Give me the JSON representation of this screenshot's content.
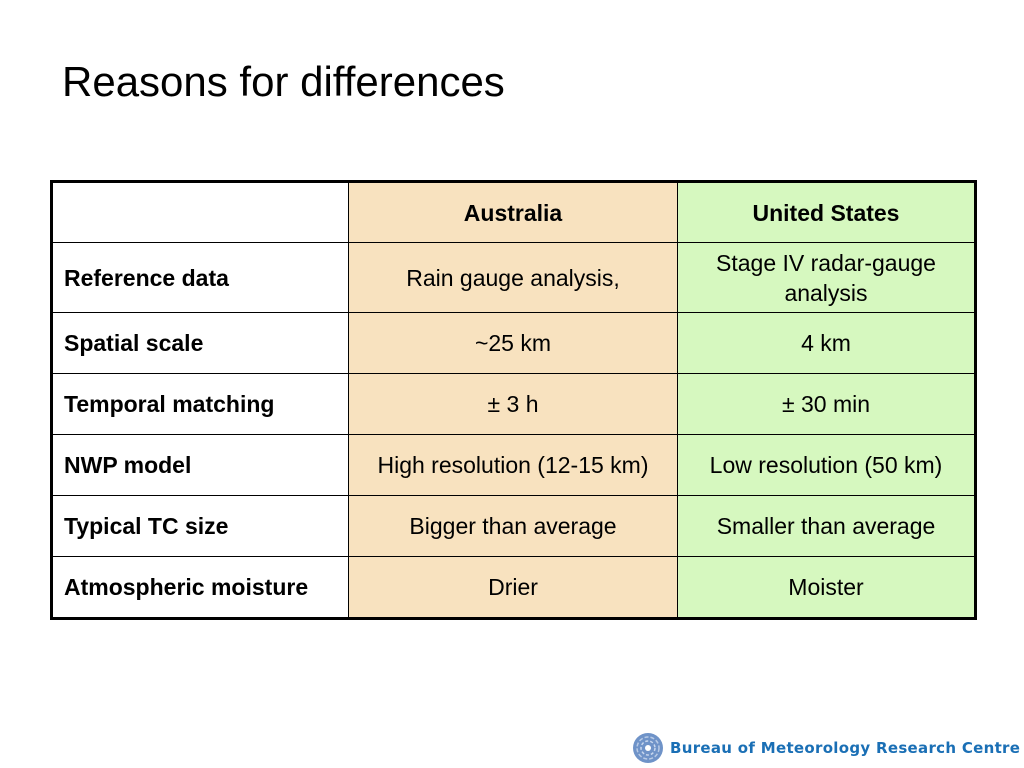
{
  "slide": {
    "title": "Reasons for differences"
  },
  "table": {
    "columns": [
      "",
      "Australia",
      "United States"
    ],
    "rows": [
      {
        "label": "Reference data",
        "australia": "Rain gauge analysis,",
        "us": "Stage IV radar-gauge analysis"
      },
      {
        "label": "Spatial scale",
        "australia": "~25 km",
        "us": "4 km"
      },
      {
        "label": "Temporal matching",
        "australia": "± 3 h",
        "us": "± 30 min"
      },
      {
        "label": "NWP model",
        "australia": "High resolution (12-15 km)",
        "us": "Low resolution (50 km)"
      },
      {
        "label": "Typical TC size",
        "australia": "Bigger than average",
        "us": "Smaller than average"
      },
      {
        "label": "Atmospheric moisture",
        "australia": "Drier",
        "us": "Moister"
      }
    ]
  },
  "footer": {
    "logo_text": "Bureau of Meteorology Research Centre"
  },
  "colors": {
    "australia": "#f8e2bf",
    "us": "#d6f8bf",
    "logo": "#1a6fb5"
  }
}
